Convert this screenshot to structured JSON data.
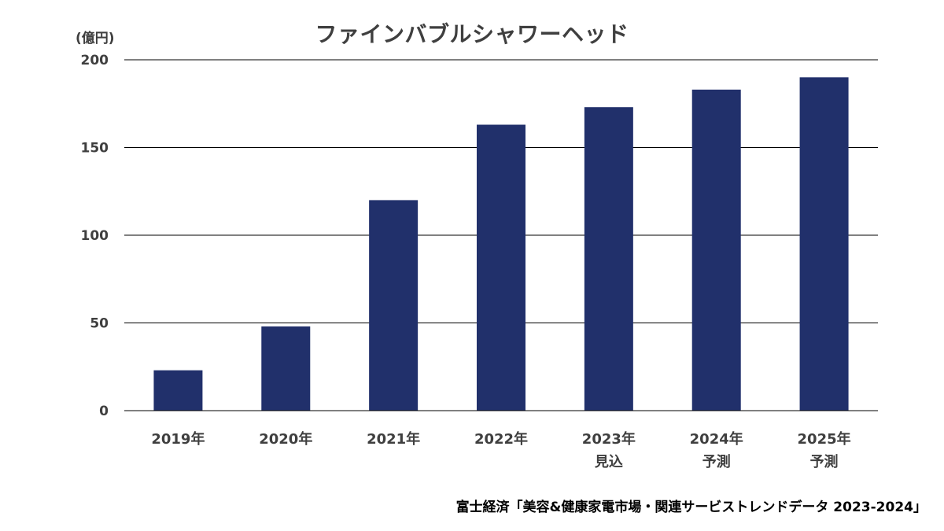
{
  "chart_data": {
    "type": "bar",
    "title": "ファインバブルシャワーヘッド",
    "unit_label": "(億円)",
    "categories": [
      [
        "2019年"
      ],
      [
        "2020年"
      ],
      [
        "2021年"
      ],
      [
        "2022年"
      ],
      [
        "2023年",
        "見込"
      ],
      [
        "2024年",
        "予測"
      ],
      [
        "2025年",
        "予測"
      ]
    ],
    "values": [
      23,
      48,
      120,
      163,
      173,
      183,
      190
    ],
    "ylim": [
      0,
      200
    ],
    "yticks": [
      0,
      50,
      100,
      150,
      200
    ],
    "grid": true,
    "bar_color": "#21306B",
    "grid_color": "#000000",
    "xlabel": "",
    "ylabel": ""
  },
  "source": "富士経済「美容&健康家電市場・関連サービストレンドデータ 2023-2024」"
}
